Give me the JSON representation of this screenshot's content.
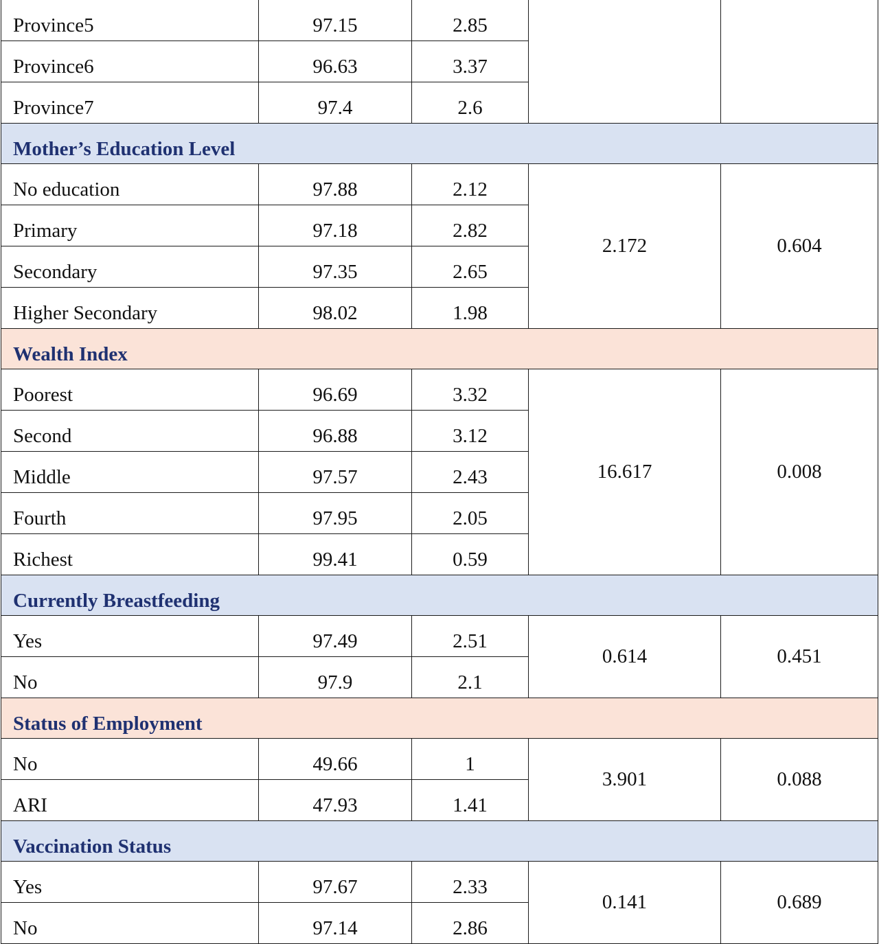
{
  "sections": [
    {
      "title": null,
      "rows": [
        {
          "label": "Province5",
          "v1": "97.15",
          "v2": "2.85"
        },
        {
          "label": "Province6",
          "v1": "96.63",
          "v2": "3.37"
        },
        {
          "label": "Province7",
          "v1": "97.4",
          "v2": "2.6"
        }
      ],
      "chi": "",
      "p": ""
    },
    {
      "title": "Mother’s Education Level",
      "color": "blue",
      "rows": [
        {
          "label": "No education",
          "v1": "97.88",
          "v2": "2.12"
        },
        {
          "label": "Primary",
          "v1": "97.18",
          "v2": "2.82"
        },
        {
          "label": "Secondary",
          "v1": "97.35",
          "v2": "2.65"
        },
        {
          "label": "Higher Secondary",
          "v1": "98.02",
          "v2": "1.98"
        }
      ],
      "chi": "2.172",
      "p": "0.604"
    },
    {
      "title": "Wealth Index",
      "color": "peach",
      "rows": [
        {
          "label": "Poorest",
          "v1": "96.69",
          "v2": "3.32"
        },
        {
          "label": "Second",
          "v1": "96.88",
          "v2": "3.12"
        },
        {
          "label": "Middle",
          "v1": "97.57",
          "v2": "2.43"
        },
        {
          "label": "Fourth",
          "v1": "97.95",
          "v2": "2.05"
        },
        {
          "label": "Richest",
          "v1": "99.41",
          "v2": "0.59"
        }
      ],
      "chi": "16.617",
      "p": "0.008"
    },
    {
      "title": "Currently Breastfeeding",
      "color": "blue",
      "rows": [
        {
          "label": "Yes",
          "v1": "97.49",
          "v2": "2.51"
        },
        {
          "label": "No",
          "v1": "97.9",
          "v2": "2.1"
        }
      ],
      "chi": "0.614",
      "p": "0.451"
    },
    {
      "title": "Status of Employment",
      "color": "peach",
      "rows": [
        {
          "label": "No",
          "v1": "49.66",
          "v2": "1"
        },
        {
          "label": "ARI",
          "v1": "47.93",
          "v2": "1.41"
        }
      ],
      "chi": "3.901",
      "p": "0.088"
    },
    {
      "title": "Vaccination Status",
      "color": "blue",
      "rows": [
        {
          "label": "Yes",
          "v1": "97.67",
          "v2": "2.33"
        },
        {
          "label": "No",
          "v1": "97.14",
          "v2": "2.86"
        }
      ],
      "chi": "0.141",
      "p": "0.689"
    }
  ]
}
